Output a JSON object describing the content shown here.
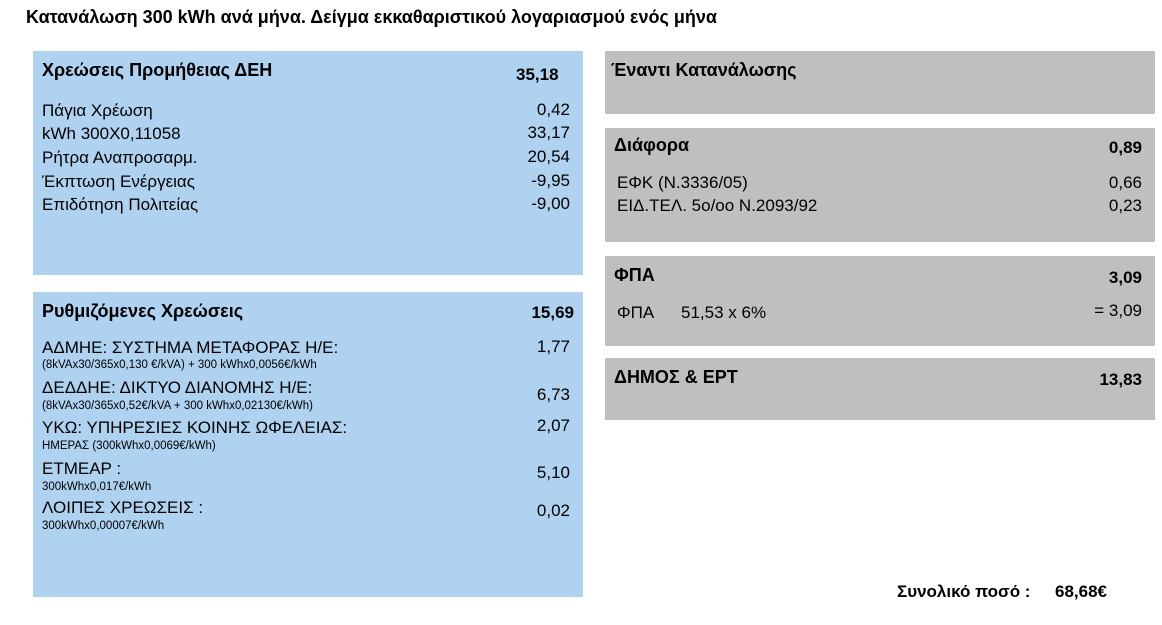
{
  "title": "Κατανάλωση 300 kWh ανά μήνα. Δείγμα εκκαθαριστικού λογαριασμού ενός μήνα",
  "supply": {
    "header": "Χρεώσεις Προμήθειας ΔΕΗ",
    "total": "35,18",
    "items": [
      {
        "label": "Πάγια Χρέωση",
        "value": "0,42"
      },
      {
        "label": "kWh 300Χ0,11058",
        "value": "33,17"
      },
      {
        "label": "Ρήτρα Αναπροσαρμ.",
        "value": "20,54"
      },
      {
        "label": "Έκπτωση Ενέργειας",
        "value": "-9,95"
      },
      {
        "label": "Επιδότηση Πολιτείας",
        "value": "-9,00"
      }
    ]
  },
  "regulated": {
    "header": "Ρυθμιζόμενες Χρεώσεις",
    "total": "15,69",
    "items": [
      {
        "label": "ΑΔΜΗΕ: ΣΥΣΤΗΜΑ ΜΕΤΑΦΟΡΑΣ Η/Ε:",
        "sub": "(8kVAx30/365x0,130 €/kVA) + 300 kWhx0,0056€/kWh",
        "value": "1,77"
      },
      {
        "label": "ΔΕΔΔΗΕ: ΔΙΚΤΥΟ ΔΙΑΝΟΜΗΣ Η/Ε:",
        "sub": "(8kVAx30/365x0,52€/kVA + 300 kWhx0,02130€/kWh)",
        "value": "6,73"
      },
      {
        "label": "ΥΚΩ: ΥΠΗΡΕΣΙΕΣ ΚΟΙΝΗΣ ΩΦΕΛΕΙΑΣ:",
        "sub": "ΗΜΕΡΑΣ  (300kWhx0,0069€/kWh)",
        "value": "2,07"
      },
      {
        "label": "ΕΤΜΕΑΡ :",
        "sub": "300kWhx0,017€/kWh",
        "value": "5,10"
      },
      {
        "label": "ΛΟΙΠΕΣ ΧΡΕΩΣΕΙΣ :",
        "sub": "300kWhx0,00007€/kWh",
        "value": "0,02"
      }
    ]
  },
  "advance": {
    "header": "Έναντι Κατανάλωσης"
  },
  "difference": {
    "header": "Διάφορα",
    "total": "0,89",
    "items": [
      {
        "label": "ΕΦΚ (Ν.3336/05)",
        "value": "0,66"
      },
      {
        "label": "ΕΙΔ.ΤΕΛ. 5ο/οο Ν.2093/92",
        "value": "0,23"
      }
    ]
  },
  "vat": {
    "header": "ΦΠΑ",
    "total": "3,09",
    "label": "ΦΠΑ",
    "calc": "51,53 x 6%",
    "value": "= 3,09"
  },
  "municipal": {
    "header": "ΔΗΜΟΣ & ΕΡΤ",
    "total": "13,83"
  },
  "grand_total": {
    "label": "Συνολικό ποσό :",
    "value": "68,68€"
  },
  "colors": {
    "blue_panel": "#afd2f0",
    "gray_panel": "#bfbfbf"
  }
}
